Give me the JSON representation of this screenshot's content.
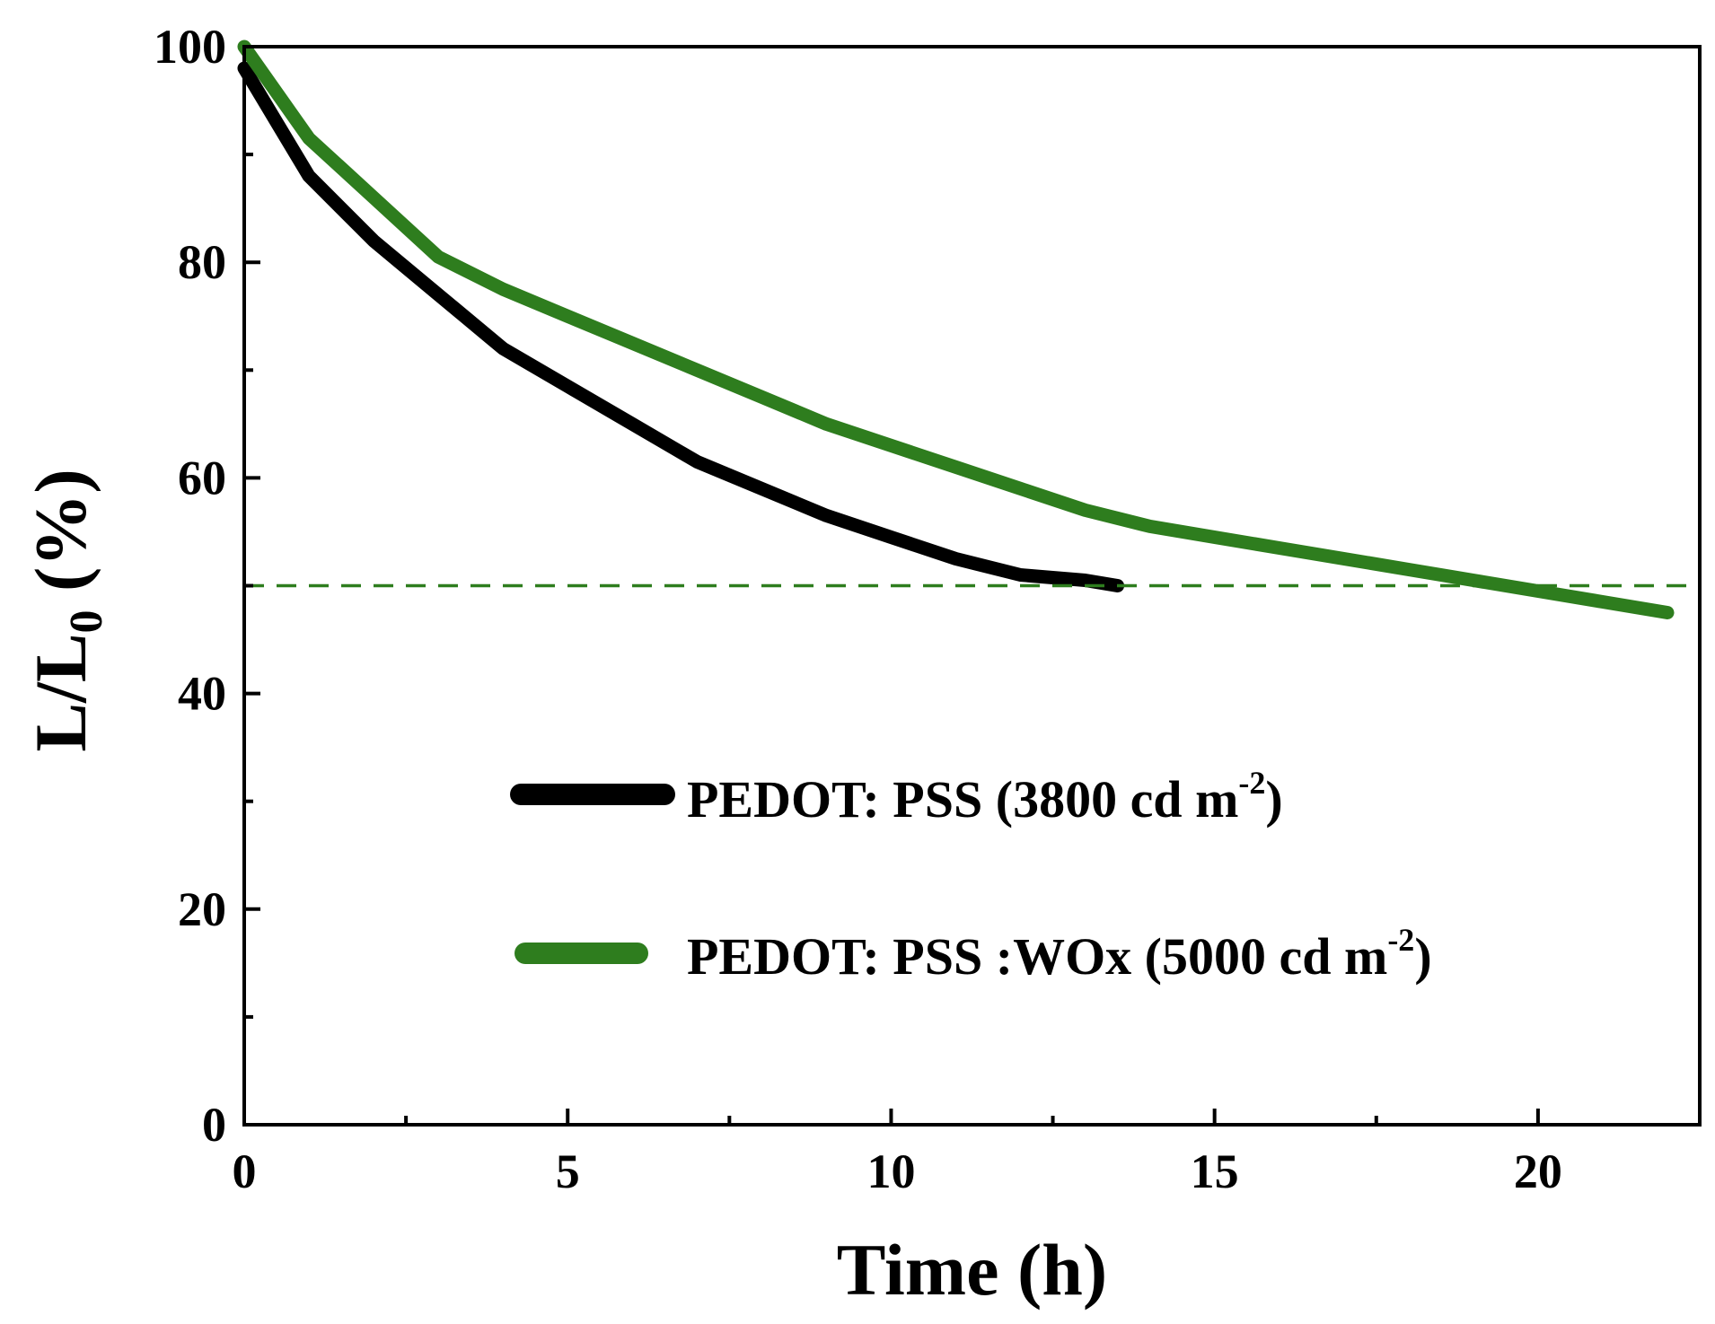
{
  "chart_data": {
    "type": "line",
    "title": "",
    "xlabel": "Time (h)",
    "ylabel_main": "L/L",
    "ylabel_sub": "0",
    "ylabel_suffix": " (%)",
    "xlim": [
      0,
      22.5
    ],
    "ylim": [
      0,
      100
    ],
    "x_ticks": [
      0,
      5,
      10,
      15,
      20
    ],
    "y_ticks": [
      0,
      20,
      40,
      60,
      80,
      100
    ],
    "x_tick_labels": [
      "0",
      "5",
      "10",
      "15",
      "20"
    ],
    "y_tick_labels": [
      "0",
      "20",
      "40",
      "60",
      "80",
      "100"
    ],
    "grid": false,
    "legend_position": "center",
    "reference_line": {
      "y": 50,
      "style": "dashed",
      "color": "#2e7d1e"
    },
    "series": [
      {
        "name": "PEDOT: PSS (3800 cd m",
        "sup": "-2",
        "close": ")",
        "color": "#000000",
        "x": [
          0,
          0.5,
          1,
          2,
          3,
          4,
          5,
          6,
          7,
          8,
          9,
          10,
          11,
          12,
          13,
          13.5
        ],
        "y": [
          98,
          93,
          88,
          82,
          77,
          72,
          68.5,
          65,
          61.5,
          59,
          56.5,
          54.5,
          52.5,
          51,
          50.5,
          50
        ]
      },
      {
        "name": "PEDOT: PSS :WOx (5000 cd m",
        "sup": "-2",
        "close": ")",
        "color": "#2e7d1e",
        "x": [
          0,
          1,
          2,
          3,
          4,
          5,
          6,
          7,
          8,
          9,
          10,
          11,
          12,
          13,
          14,
          15,
          16,
          17,
          18,
          19,
          20,
          21,
          22
        ],
        "y": [
          100,
          91.5,
          86,
          80.5,
          77.5,
          75,
          72.5,
          70,
          67.5,
          65,
          63,
          61,
          59,
          57,
          55.5,
          54.5,
          53.5,
          52.5,
          51.5,
          50.5,
          49.5,
          48.5,
          47.5
        ]
      }
    ]
  }
}
